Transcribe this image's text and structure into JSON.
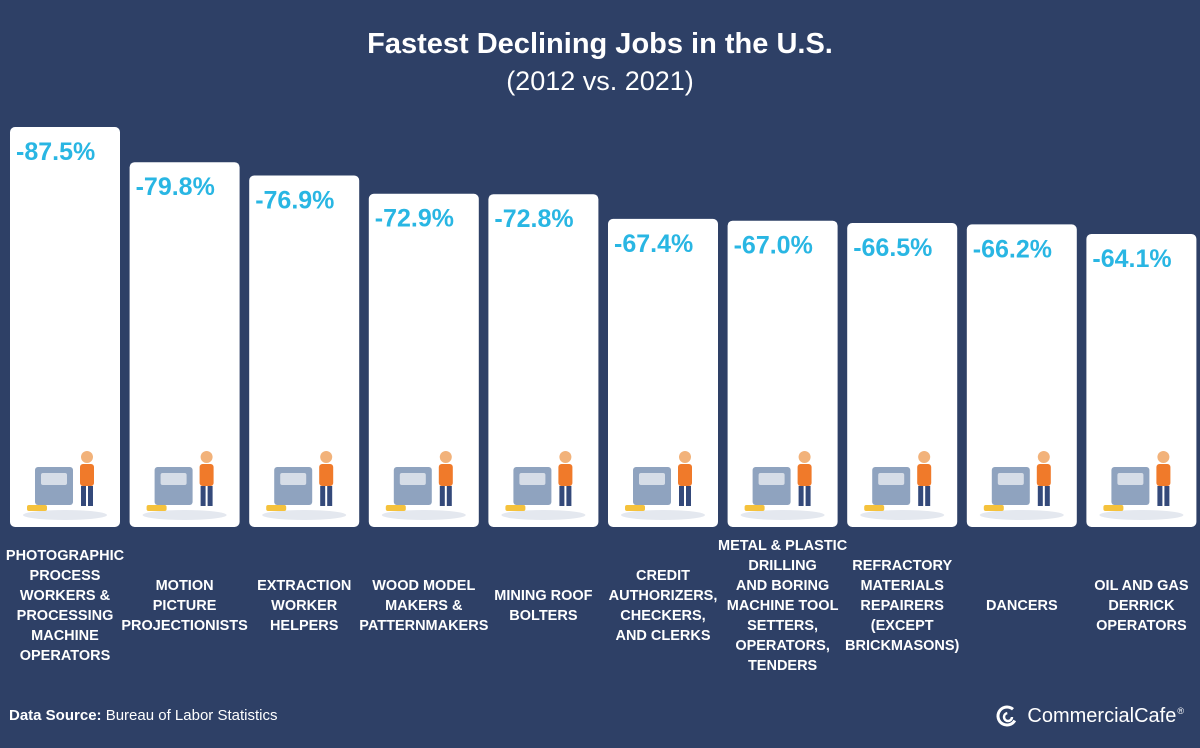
{
  "title": "Fastest Declining Jobs in the U.S.",
  "subtitle": "(2012 vs. 2021)",
  "source": {
    "label": "Data Source:",
    "text": "Bureau of Labor Statistics"
  },
  "brand": {
    "name": "CommercialCafe",
    "mark": "®"
  },
  "colors": {
    "background": "#2e4066",
    "bar": "#ffffff",
    "value_text": "#29b6e3",
    "label_text": "#ffffff"
  },
  "chart_data": {
    "type": "bar",
    "title": "Fastest Declining Jobs in the U.S.",
    "subtitle": "(2012 vs. 2021)",
    "xlabel": "",
    "ylabel": "",
    "ylim": [
      0,
      -87.5
    ],
    "grid": false,
    "categories": [
      "PHOTOGRAPHIC PROCESS WORKERS & PROCESSING MACHINE OPERATORS",
      "MOTION PICTURE PROJECTIONISTS",
      "EXTRACTION WORKER HELPERS",
      "WOOD MODEL MAKERS & PATTERNMAKERS",
      "MINING ROOF BOLTERS",
      "CREDIT AUTHORIZERS, CHECKERS, AND CLERKS",
      "METAL & PLASTIC DRILLING AND BORING MACHINE TOOL SETTERS, OPERATORS, TENDERS",
      "REFRACTORY MATERIALS REPAIRERS (EXCEPT BRICKMASONS)",
      "DANCERS",
      "OIL AND GAS DERRICK OPERATORS"
    ],
    "category_lines": [
      [
        "PHOTOGRAPHIC",
        "PROCESS",
        "WORKERS &",
        "PROCESSING",
        "MACHINE",
        "OPERATORS"
      ],
      [
        "MOTION",
        "PICTURE",
        "PROJECTIONISTS"
      ],
      [
        "EXTRACTION",
        "WORKER",
        "HELPERS"
      ],
      [
        "WOOD MODEL",
        "MAKERS &",
        "PATTERNMAKERS"
      ],
      [
        "MINING ROOF",
        "BOLTERS"
      ],
      [
        "CREDIT",
        "AUTHORIZERS,",
        "CHECKERS,",
        "AND CLERKS"
      ],
      [
        "METAL & PLASTIC",
        "DRILLING",
        "AND BORING",
        "MACHINE TOOL",
        "SETTERS,",
        "OPERATORS,",
        "TENDERS"
      ],
      [
        "REFRACTORY",
        "MATERIALS",
        "REPAIRERS",
        "(EXCEPT",
        "BRICKMASONS)"
      ],
      [
        "DANCERS"
      ],
      [
        "OIL AND GAS",
        "DERRICK",
        "OPERATORS"
      ]
    ],
    "values": [
      -87.5,
      -79.8,
      -76.9,
      -72.9,
      -72.8,
      -67.4,
      -67.0,
      -66.5,
      -66.2,
      -64.1
    ],
    "value_labels": [
      "-87.5%",
      "-79.8%",
      "-76.9%",
      "-72.9%",
      "-72.8%",
      "-67.4%",
      "-67.0%",
      "-66.5%",
      "-66.2%",
      "-64.1%"
    ],
    "icons": [
      "photo-processing-illustration",
      "film-projector-illustration",
      "extraction-pipes-illustration",
      "woodworker-illustration",
      "mining-cart-illustration",
      "credit-document-illustration",
      "drilling-machine-illustration",
      "ladder-repairer-illustration",
      "dancers-illustration",
      "oil-derrick-illustration"
    ]
  }
}
